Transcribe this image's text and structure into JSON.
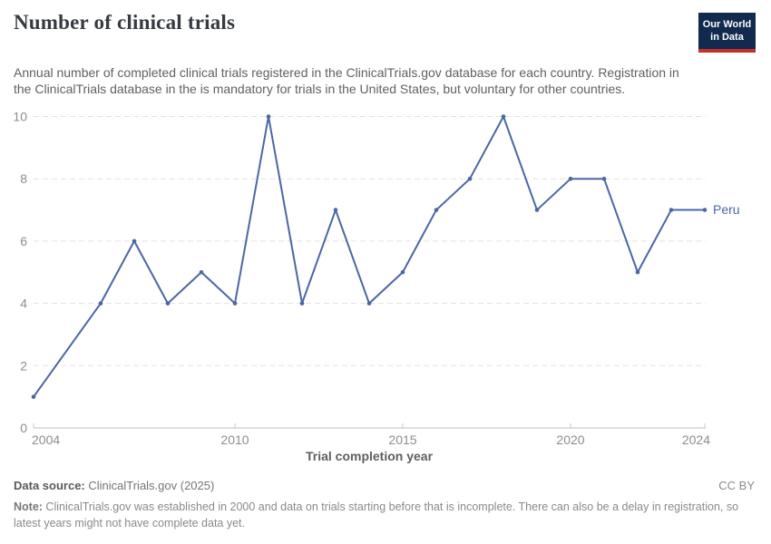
{
  "header": {
    "title": "Number of clinical trials",
    "subtitle": "Annual number of completed clinical trials registered in the ClinicalTrials.gov database for each country. Registration in the ClinicalTrials database in the is mandatory for trials in the United States, but voluntary for other countries."
  },
  "logo": {
    "line1": "Our World",
    "line2": "in Data",
    "bg_color": "#112a4e",
    "bar_color": "#c5302b"
  },
  "chart_data": {
    "type": "line",
    "title": "Number of clinical trials",
    "xlabel": "Trial completion year",
    "ylabel": "",
    "x": [
      2004,
      2005,
      2006,
      2007,
      2008,
      2009,
      2010,
      2011,
      2012,
      2013,
      2014,
      2015,
      2016,
      2017,
      2018,
      2019,
      2020,
      2021,
      2022,
      2023,
      2024
    ],
    "series": [
      {
        "name": "Peru",
        "color": "#4a67a4",
        "values": [
          1,
          null,
          4,
          6,
          4,
          5,
          4,
          10,
          4,
          7,
          4,
          5,
          7,
          8,
          10,
          7,
          8,
          8,
          5,
          7,
          7
        ]
      }
    ],
    "ylim": [
      0,
      10
    ],
    "yticks": [
      0,
      2,
      4,
      6,
      8,
      10
    ],
    "xticks": [
      2004,
      2010,
      2015,
      2020,
      2024
    ],
    "grid": "horizontal-dashed",
    "legend_position": "end-of-line-label"
  },
  "footer": {
    "source_label": "Data source:",
    "source_value": " ClinicalTrials.gov (2025)",
    "license": "CC BY",
    "note_label": "Note:",
    "note_text": " ClinicalTrials.gov was established in 2000 and data on trials starting before that is incomplete. There can also be a delay in registration, so latest years might not have complete data yet."
  },
  "colors": {
    "line": "#4a67a4",
    "grid": "#e2e2e2",
    "axis": "#bdbdbd",
    "tick_label": "#8d8d8d"
  }
}
